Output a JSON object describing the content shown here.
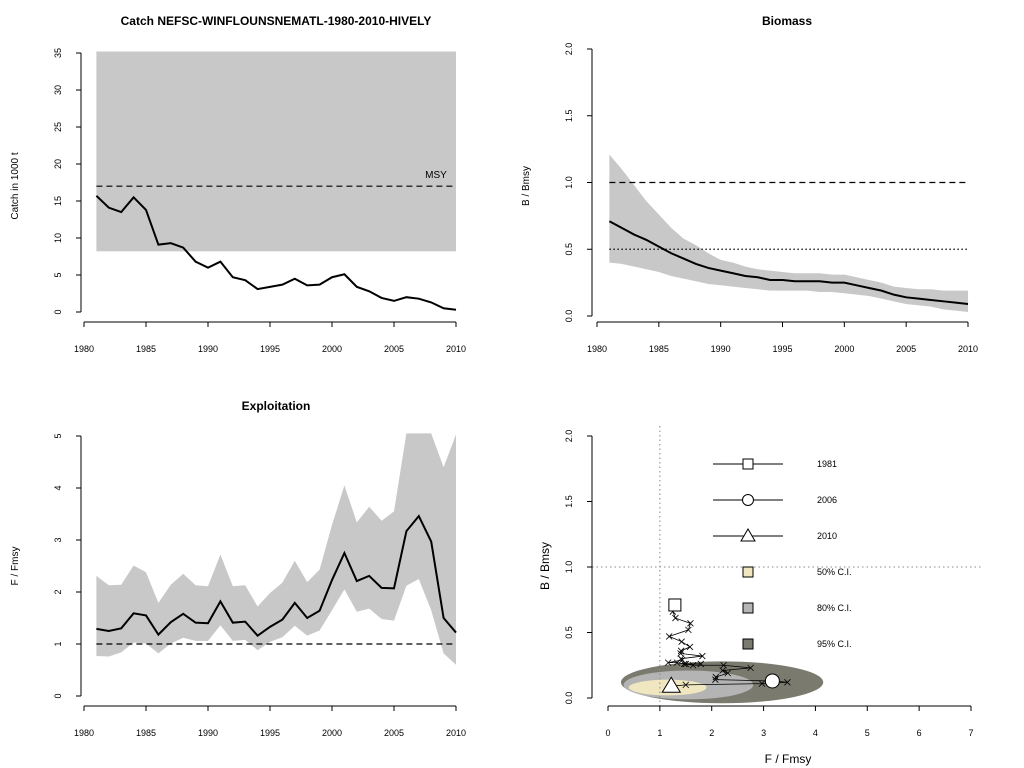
{
  "chart_data": [
    {
      "type": "line",
      "title": "Catch NEFSC-WINFLOUNSNEMATL-1980-2010-HIVELY",
      "xlabel": "",
      "ylabel": "Catch in 1000 t",
      "xlim": [
        1980,
        2010
      ],
      "ylim": [
        0,
        35
      ],
      "xticks": [
        "1980",
        "1985",
        "1990",
        "1995",
        "2000",
        "2005",
        "2010"
      ],
      "yticks": [
        "0",
        "5",
        "10",
        "15",
        "20",
        "25",
        "30",
        "35"
      ],
      "msy_label": "MSY",
      "msy": 17.0,
      "msy_band": [
        8.2,
        35.2
      ],
      "x": [
        1981,
        1982,
        1983,
        1984,
        1985,
        1986,
        1987,
        1988,
        1989,
        1990,
        1991,
        1992,
        1993,
        1994,
        1995,
        1996,
        1997,
        1998,
        1999,
        2000,
        2001,
        2002,
        2003,
        2004,
        2005,
        2006,
        2007,
        2008,
        2009,
        2010
      ],
      "values": [
        15.7,
        14.1,
        13.5,
        15.5,
        13.8,
        9.1,
        9.3,
        8.7,
        6.8,
        6.0,
        6.8,
        4.7,
        4.3,
        3.1,
        3.4,
        3.7,
        4.5,
        3.6,
        3.7,
        4.7,
        5.1,
        3.4,
        2.8,
        1.9,
        1.5,
        2.0,
        1.8,
        1.3,
        0.5,
        0.3
      ]
    },
    {
      "type": "line",
      "title": "Biomass",
      "xlabel": "",
      "ylabel": "B / Bmsy",
      "xlim": [
        1980,
        2010
      ],
      "ylim": [
        0,
        2
      ],
      "xticks": [
        "1980",
        "1985",
        "1990",
        "1995",
        "2000",
        "2005",
        "2010"
      ],
      "yticks": [
        "0.0",
        "0.5",
        "1.0",
        "1.5",
        "2.0"
      ],
      "ref_dashed": 1.0,
      "ref_dotted": 0.5,
      "x": [
        1981,
        1982,
        1983,
        1984,
        1985,
        1986,
        1987,
        1988,
        1989,
        1990,
        1991,
        1992,
        1993,
        1994,
        1995,
        1996,
        1997,
        1998,
        1999,
        2000,
        2001,
        2002,
        2003,
        2004,
        2005,
        2006,
        2007,
        2008,
        2009,
        2010
      ],
      "values": [
        0.71,
        0.66,
        0.61,
        0.57,
        0.52,
        0.47,
        0.43,
        0.39,
        0.36,
        0.34,
        0.32,
        0.3,
        0.29,
        0.27,
        0.27,
        0.26,
        0.26,
        0.26,
        0.25,
        0.25,
        0.23,
        0.21,
        0.19,
        0.16,
        0.14,
        0.13,
        0.12,
        0.11,
        0.1,
        0.09
      ],
      "upper": [
        1.21,
        1.1,
        0.98,
        0.86,
        0.76,
        0.66,
        0.58,
        0.53,
        0.47,
        0.42,
        0.4,
        0.37,
        0.35,
        0.34,
        0.33,
        0.32,
        0.32,
        0.32,
        0.31,
        0.31,
        0.29,
        0.27,
        0.25,
        0.22,
        0.21,
        0.2,
        0.2,
        0.19,
        0.19,
        0.19
      ],
      "lower": [
        0.4,
        0.39,
        0.37,
        0.35,
        0.33,
        0.3,
        0.28,
        0.26,
        0.24,
        0.23,
        0.22,
        0.21,
        0.2,
        0.19,
        0.19,
        0.19,
        0.19,
        0.18,
        0.18,
        0.17,
        0.16,
        0.15,
        0.13,
        0.11,
        0.09,
        0.08,
        0.07,
        0.05,
        0.04,
        0.03
      ]
    },
    {
      "type": "line",
      "title": "Exploitation",
      "xlabel": "",
      "ylabel": "F / Fmsy",
      "xlim": [
        1980,
        2010
      ],
      "ylim": [
        0,
        5
      ],
      "xticks": [
        "1980",
        "1985",
        "1990",
        "1995",
        "2000",
        "2005",
        "2010"
      ],
      "yticks": [
        "0",
        "1",
        "2",
        "3",
        "4",
        "5"
      ],
      "ref_dashed": 1.0,
      "x": [
        1981,
        1982,
        1983,
        1984,
        1985,
        1986,
        1987,
        1988,
        1989,
        1990,
        1991,
        1992,
        1993,
        1994,
        1995,
        1996,
        1997,
        1998,
        1999,
        2000,
        2001,
        2002,
        2003,
        2004,
        2005,
        2006,
        2007,
        2008,
        2009,
        2010
      ],
      "values": [
        1.29,
        1.25,
        1.3,
        1.59,
        1.55,
        1.18,
        1.42,
        1.58,
        1.41,
        1.4,
        1.82,
        1.41,
        1.43,
        1.16,
        1.33,
        1.47,
        1.79,
        1.5,
        1.64,
        2.23,
        2.75,
        2.21,
        2.31,
        2.08,
        2.07,
        3.17,
        3.46,
        2.97,
        1.5,
        1.22
      ],
      "upper": [
        2.31,
        2.13,
        2.14,
        2.51,
        2.38,
        1.79,
        2.14,
        2.35,
        2.13,
        2.11,
        2.72,
        2.11,
        2.13,
        1.72,
        1.98,
        2.18,
        2.6,
        2.19,
        2.43,
        3.29,
        4.05,
        3.34,
        3.64,
        3.37,
        3.55,
        5.3,
        5.3,
        5.3,
        4.4,
        5.03
      ],
      "lower": [
        0.77,
        0.76,
        0.84,
        1.03,
        1.01,
        0.82,
        1.01,
        1.12,
        1.06,
        1.06,
        1.36,
        1.06,
        1.08,
        0.88,
        1.04,
        1.13,
        1.35,
        1.16,
        1.26,
        1.65,
        2.05,
        1.62,
        1.68,
        1.48,
        1.45,
        2.12,
        2.25,
        1.65,
        0.82,
        0.6
      ]
    },
    {
      "type": "scatter",
      "title": "",
      "xlabel": "F / Fmsy",
      "ylabel": "B / Bmsy",
      "xlim": [
        0,
        7
      ],
      "ylim": [
        0,
        2
      ],
      "xticks": [
        "0",
        "1",
        "2",
        "3",
        "4",
        "5",
        "6",
        "7"
      ],
      "yticks": [
        "0.0",
        "0.5",
        "1.0",
        "1.5",
        "2.0"
      ],
      "ref_v": 1.0,
      "ref_h": 1.0,
      "trajectory_F": [
        1.29,
        1.25,
        1.3,
        1.59,
        1.55,
        1.18,
        1.42,
        1.58,
        1.41,
        1.4,
        1.82,
        1.41,
        1.43,
        1.16,
        1.33,
        1.47,
        1.79,
        1.5,
        1.64,
        2.23,
        2.75,
        2.21,
        2.31,
        2.08,
        2.07,
        3.17,
        3.46,
        2.97,
        1.5,
        1.22
      ],
      "trajectory_B": [
        0.71,
        0.66,
        0.61,
        0.57,
        0.52,
        0.47,
        0.43,
        0.39,
        0.36,
        0.34,
        0.32,
        0.3,
        0.29,
        0.27,
        0.27,
        0.26,
        0.26,
        0.26,
        0.25,
        0.25,
        0.23,
        0.21,
        0.19,
        0.16,
        0.14,
        0.13,
        0.12,
        0.11,
        0.1,
        0.09
      ],
      "legend": [
        {
          "label": "1981",
          "symbol": "square"
        },
        {
          "label": "2006",
          "symbol": "circle"
        },
        {
          "label": "2010",
          "symbol": "triangle"
        },
        {
          "label": "50% C.I.",
          "color": "#f0e7c0"
        },
        {
          "label": "80% C.I.",
          "color": "#b4b4b4"
        },
        {
          "label": "95% C.I.",
          "color": "#7a7a6e"
        }
      ],
      "markers": [
        {
          "label": "1981",
          "F": 1.29,
          "B": 0.71
        },
        {
          "label": "2006",
          "F": 3.17,
          "B": 0.13
        },
        {
          "label": "2010",
          "F": 1.22,
          "B": 0.09
        }
      ]
    }
  ]
}
